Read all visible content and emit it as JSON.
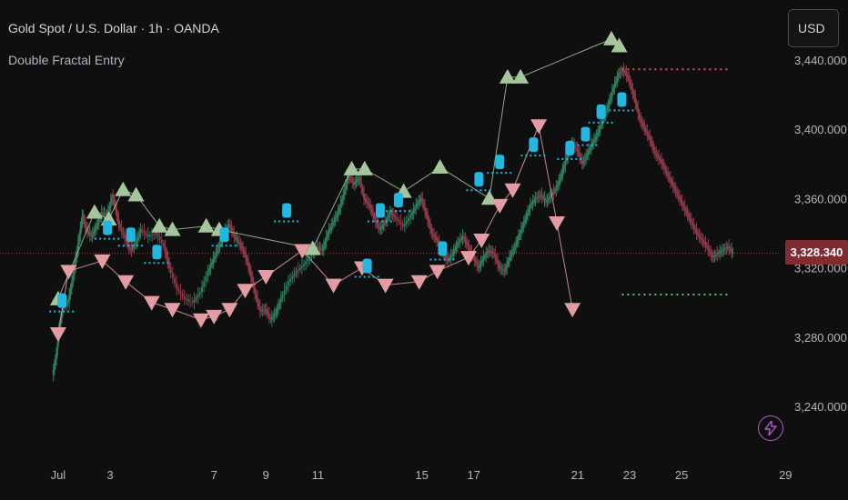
{
  "header": {
    "title": "Gold Spot / U.S. Dollar · 1h · OANDA",
    "indicator": "Double Fractal Entry"
  },
  "currency_button": "USD",
  "last_price_label": "3,328.340",
  "colors": {
    "background": "#0f0f0f",
    "up_fractal": "#a5c69c",
    "down_fractal": "#e39da2",
    "entry_marker": "#22b6e0",
    "bull_candle": "#2e7d5b",
    "bear_candle": "#8c3a48",
    "resistance_level": "#e05260",
    "support_level": "#62c466",
    "entry_level": "#22b6e0",
    "price_line": "#c94a55",
    "alert_icon": "#b05cd0"
  },
  "icons": {
    "alert": "lightning-icon"
  },
  "chart_data": {
    "type": "candlestick",
    "title": "Gold Spot / U.S. Dollar · 1h · OANDA",
    "xlabel": "",
    "ylabel": "",
    "x_ticks": [
      "Jul",
      "3",
      "7",
      "9",
      "11",
      "15",
      "17",
      "21",
      "23",
      "25",
      "29"
    ],
    "x_tick_positions": [
      1,
      3,
      7,
      9,
      11,
      15,
      17,
      21,
      23,
      25,
      29
    ],
    "y_ticks": [
      "3,240.000",
      "3,280.000",
      "3,320.000",
      "3,360.000",
      "3,400.000",
      "3,440.000"
    ],
    "y_tick_values": [
      3240,
      3280,
      3320,
      3360,
      3400,
      3440
    ],
    "ylim": [
      3218,
      3446
    ],
    "xlim": [
      0.75,
      29.5
    ],
    "last_price": 3328.34,
    "close_path": [
      [
        0.8,
        3258
      ],
      [
        0.95,
        3270
      ],
      [
        1.05,
        3284
      ],
      [
        1.2,
        3298
      ],
      [
        1.4,
        3300
      ],
      [
        1.6,
        3316
      ],
      [
        1.8,
        3335
      ],
      [
        1.95,
        3350
      ],
      [
        2.1,
        3342
      ],
      [
        2.3,
        3338
      ],
      [
        2.5,
        3344
      ],
      [
        2.7,
        3352
      ],
      [
        2.9,
        3350
      ],
      [
        3.1,
        3361
      ],
      [
        3.2,
        3356
      ],
      [
        3.35,
        3345
      ],
      [
        3.6,
        3337
      ],
      [
        3.8,
        3330
      ],
      [
        4.0,
        3334
      ],
      [
        4.2,
        3342
      ],
      [
        4.5,
        3338
      ],
      [
        4.8,
        3340
      ],
      [
        5.1,
        3332
      ],
      [
        5.3,
        3320
      ],
      [
        5.6,
        3308
      ],
      [
        5.9,
        3302
      ],
      [
        6.2,
        3300
      ],
      [
        6.5,
        3306
      ],
      [
        6.8,
        3318
      ],
      [
        7.0,
        3325
      ],
      [
        7.2,
        3332
      ],
      [
        7.4,
        3340
      ],
      [
        7.6,
        3345
      ],
      [
        7.8,
        3338
      ],
      [
        8.0,
        3334
      ],
      [
        8.2,
        3328
      ],
      [
        8.4,
        3318
      ],
      [
        8.6,
        3305
      ],
      [
        8.8,
        3295
      ],
      [
        9.0,
        3296
      ],
      [
        9.2,
        3290
      ],
      [
        9.4,
        3294
      ],
      [
        9.6,
        3302
      ],
      [
        9.9,
        3312
      ],
      [
        10.2,
        3318
      ],
      [
        10.5,
        3322
      ],
      [
        10.8,
        3328
      ],
      [
        11.0,
        3332
      ],
      [
        11.2,
        3330
      ],
      [
        11.4,
        3340
      ],
      [
        11.6,
        3346
      ],
      [
        11.8,
        3352
      ],
      [
        12.0,
        3362
      ],
      [
        12.2,
        3374
      ],
      [
        12.4,
        3368
      ],
      [
        12.6,
        3372
      ],
      [
        12.8,
        3360
      ],
      [
        13.0,
        3356
      ],
      [
        13.2,
        3348
      ],
      [
        13.4,
        3342
      ],
      [
        13.6,
        3346
      ],
      [
        13.8,
        3352
      ],
      [
        14.0,
        3349
      ],
      [
        14.3,
        3344
      ],
      [
        14.6,
        3350
      ],
      [
        14.8,
        3356
      ],
      [
        15.0,
        3360
      ],
      [
        15.2,
        3350
      ],
      [
        15.4,
        3340
      ],
      [
        15.6,
        3336
      ],
      [
        15.8,
        3330
      ],
      [
        16.0,
        3324
      ],
      [
        16.2,
        3328
      ],
      [
        16.4,
        3334
      ],
      [
        16.6,
        3338
      ],
      [
        16.8,
        3332
      ],
      [
        17.0,
        3326
      ],
      [
        17.2,
        3320
      ],
      [
        17.4,
        3326
      ],
      [
        17.6,
        3330
      ],
      [
        17.8,
        3328
      ],
      [
        18.0,
        3320
      ],
      [
        18.2,
        3318
      ],
      [
        18.4,
        3326
      ],
      [
        18.6,
        3332
      ],
      [
        18.8,
        3340
      ],
      [
        19.0,
        3348
      ],
      [
        19.2,
        3356
      ],
      [
        19.4,
        3360
      ],
      [
        19.6,
        3362
      ],
      [
        19.8,
        3358
      ],
      [
        20.0,
        3362
      ],
      [
        20.2,
        3366
      ],
      [
        20.4,
        3374
      ],
      [
        20.6,
        3384
      ],
      [
        20.8,
        3392
      ],
      [
        21.0,
        3388
      ],
      [
        21.2,
        3380
      ],
      [
        21.4,
        3386
      ],
      [
        21.6,
        3392
      ],
      [
        21.8,
        3398
      ],
      [
        22.0,
        3406
      ],
      [
        22.2,
        3414
      ],
      [
        22.4,
        3424
      ],
      [
        22.6,
        3432
      ],
      [
        22.8,
        3434
      ],
      [
        23.0,
        3428
      ],
      [
        23.2,
        3418
      ],
      [
        23.4,
        3406
      ],
      [
        23.6,
        3400
      ],
      [
        23.8,
        3394
      ],
      [
        24.0,
        3386
      ],
      [
        24.2,
        3382
      ],
      [
        24.4,
        3376
      ],
      [
        24.6,
        3370
      ],
      [
        24.8,
        3364
      ],
      [
        25.0,
        3358
      ],
      [
        25.2,
        3352
      ],
      [
        25.4,
        3346
      ],
      [
        25.6,
        3340
      ],
      [
        25.8,
        3336
      ],
      [
        26.0,
        3332
      ],
      [
        26.2,
        3326
      ],
      [
        26.4,
        3328
      ],
      [
        26.6,
        3330
      ],
      [
        26.8,
        3332
      ],
      [
        27.0,
        3328.34
      ]
    ],
    "fractal_highs": [
      [
        1.0,
        3302
      ],
      [
        2.4,
        3352
      ],
      [
        2.95,
        3348
      ],
      [
        3.5,
        3365
      ],
      [
        4.0,
        3362
      ],
      [
        4.9,
        3344
      ],
      [
        5.4,
        3342
      ],
      [
        6.7,
        3344
      ],
      [
        7.2,
        3342
      ],
      [
        10.8,
        3331
      ],
      [
        12.3,
        3377
      ],
      [
        12.8,
        3377
      ],
      [
        14.3,
        3364
      ],
      [
        15.7,
        3378
      ],
      [
        17.6,
        3360
      ],
      [
        18.3,
        3430
      ],
      [
        18.8,
        3430
      ],
      [
        22.3,
        3452
      ],
      [
        22.6,
        3448
      ]
    ],
    "fractal_lows": [
      [
        1.0,
        3282
      ],
      [
        1.4,
        3318
      ],
      [
        2.7,
        3324
      ],
      [
        3.6,
        3312
      ],
      [
        4.6,
        3300
      ],
      [
        5.4,
        3296
      ],
      [
        6.5,
        3290
      ],
      [
        7.0,
        3292
      ],
      [
        7.6,
        3296
      ],
      [
        8.2,
        3307
      ],
      [
        9.0,
        3315
      ],
      [
        10.4,
        3330
      ],
      [
        11.6,
        3310
      ],
      [
        12.7,
        3320
      ],
      [
        13.6,
        3310
      ],
      [
        14.9,
        3312
      ],
      [
        15.6,
        3318
      ],
      [
        16.8,
        3326
      ],
      [
        17.3,
        3336
      ],
      [
        18.0,
        3356
      ],
      [
        18.5,
        3365
      ],
      [
        19.5,
        3402
      ],
      [
        20.2,
        3346
      ],
      [
        20.8,
        3296
      ]
    ],
    "entry_markers": [
      [
        1.15,
        3300
      ],
      [
        2.9,
        3342
      ],
      [
        3.8,
        3338
      ],
      [
        4.8,
        3328
      ],
      [
        7.4,
        3338
      ],
      [
        9.8,
        3352
      ],
      [
        12.9,
        3320
      ],
      [
        13.4,
        3352
      ],
      [
        14.1,
        3358
      ],
      [
        15.8,
        3330
      ],
      [
        17.2,
        3370
      ],
      [
        18.0,
        3380
      ],
      [
        19.3,
        3390
      ],
      [
        20.7,
        3388
      ],
      [
        21.3,
        3396
      ],
      [
        21.9,
        3409
      ],
      [
        22.7,
        3416
      ]
    ],
    "resistance_level": {
      "value": 3434.5,
      "x_start": 22.7,
      "x_end": 26.9
    },
    "support_level": {
      "value": 3304.5,
      "x_start": 22.7,
      "x_end": 26.9
    }
  }
}
